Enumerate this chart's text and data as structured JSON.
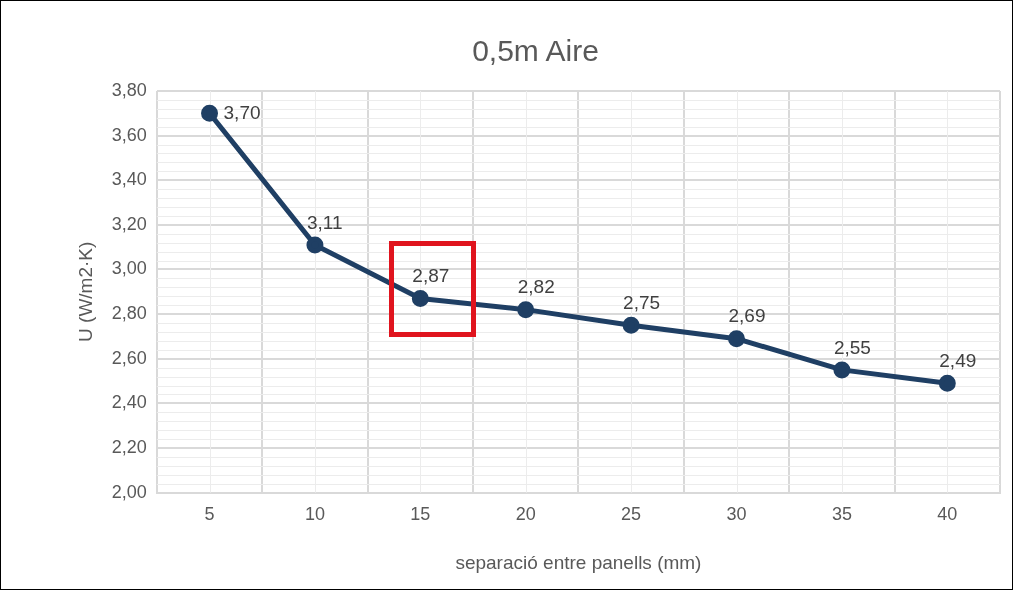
{
  "chart_data": {
    "type": "line",
    "title": "0,5m Aire",
    "xlabel": "separació entre panells (mm)",
    "ylabel": "U (W/m2·K)",
    "categories": [
      "5",
      "10",
      "15",
      "20",
      "25",
      "30",
      "35",
      "40"
    ],
    "series": [
      {
        "color": "#1f3f64",
        "values": [
          3.7,
          3.11,
          2.87,
          2.82,
          2.75,
          2.69,
          2.55,
          2.49
        ],
        "value_labels": [
          "3,70",
          "3,11",
          "2,87",
          "2,82",
          "2,75",
          "2,69",
          "2,55",
          "2,49"
        ]
      }
    ],
    "ylim": [
      2.0,
      3.8
    ],
    "yticks": [
      {
        "value": 2.0,
        "label": "2,00"
      },
      {
        "value": 2.2,
        "label": "2,20"
      },
      {
        "value": 2.4,
        "label": "2,40"
      },
      {
        "value": 2.6,
        "label": "2,60"
      },
      {
        "value": 2.8,
        "label": "2,80"
      },
      {
        "value": 3.0,
        "label": "3,00"
      },
      {
        "value": 3.2,
        "label": "3,20"
      },
      {
        "value": 3.4,
        "label": "3,40"
      },
      {
        "value": 3.6,
        "label": "3,60"
      },
      {
        "value": 3.8,
        "label": "3,80"
      }
    ],
    "grid": true,
    "legend": false,
    "marker": "circle",
    "line_style": "solid"
  }
}
